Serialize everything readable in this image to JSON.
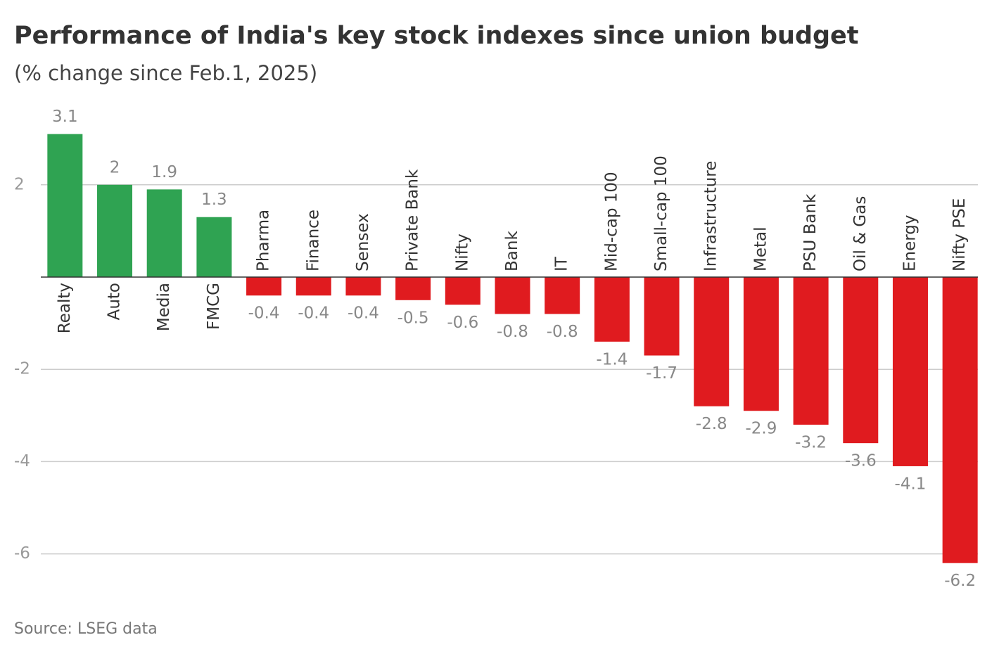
{
  "chart_data": {
    "type": "bar",
    "title": "Performance of India's key stock indexes since union budget",
    "subtitle": "(% change since Feb.1, 2025)",
    "source": "Source: LSEG data",
    "categories": [
      "Realty",
      "Auto",
      "Media",
      "FMCG",
      "Pharma",
      "Finance",
      "Sensex",
      "Private Bank",
      "Nifty",
      "Bank",
      "IT",
      "Mid-cap 100",
      "Small-cap 100",
      "Infrastructure",
      "Metal",
      "PSU Bank",
      "Oil & Gas",
      "Energy",
      "Nifty PSE"
    ],
    "values": [
      3.1,
      2,
      1.9,
      1.3,
      -0.4,
      -0.4,
      -0.4,
      -0.5,
      -0.6,
      -0.8,
      -0.8,
      -1.4,
      -1.7,
      -2.8,
      -2.9,
      -3.2,
      -3.6,
      -4.1,
      -6.2
    ],
    "positive_color": "#2fa352",
    "negative_color": "#e01b1f",
    "ylim": [
      -6.5,
      3.5
    ],
    "yticks": [
      -6,
      -4,
      -2,
      2
    ],
    "grid": true
  }
}
